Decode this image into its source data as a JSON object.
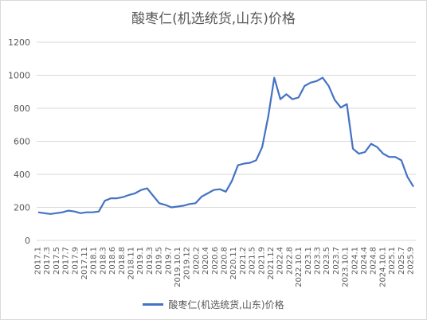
{
  "chart_data": {
    "type": "line",
    "title": "酸枣仁(机选统货,山东)价格",
    "xlabel": "",
    "ylabel": "",
    "ylim": [
      0,
      1200
    ],
    "yticks": [
      0,
      200,
      400,
      600,
      800,
      1000,
      1200
    ],
    "grid": "horizontal",
    "legend": "bottom",
    "color": "#4472c4",
    "x_tick_labels": [
      "2017.1",
      "2017.3",
      "2017.5",
      "2017.7",
      "2017.9",
      "2017.11",
      "2018.1",
      "2018.3",
      "2018.6",
      "2018.8",
      "2018.11",
      "2019.1",
      "2019.3",
      "2019.5",
      "2019.7",
      "2019.10.1",
      "2019.12",
      "2020.2",
      "2020.4",
      "2020.6",
      "2020.8",
      "2020.11",
      "2021.2",
      "2021.5",
      "2021.9",
      "2021.12",
      "2022.4",
      "2022.8",
      "2022.10.1",
      "2023.1",
      "2023.3",
      "2023.5",
      "2023.7",
      "2023.10.1",
      "2024.1",
      "2024.4",
      "2024.8",
      "2024.10.1",
      "2025.1",
      "2025.7",
      "2025.9"
    ],
    "series": [
      {
        "name": "酸枣仁(机选统货,山东)价格",
        "values": [
          170,
          165,
          160,
          165,
          170,
          180,
          175,
          165,
          170,
          170,
          175,
          240,
          255,
          255,
          262,
          275,
          285,
          305,
          315,
          270,
          225,
          215,
          200,
          205,
          210,
          220,
          225,
          265,
          285,
          305,
          310,
          295,
          360,
          455,
          465,
          470,
          485,
          565,
          750,
          985,
          855,
          885,
          855,
          865,
          935,
          955,
          965,
          985,
          935,
          850,
          805,
          825,
          555,
          525,
          535,
          585,
          565,
          525,
          505,
          505,
          485,
          385,
          325
        ]
      }
    ]
  }
}
